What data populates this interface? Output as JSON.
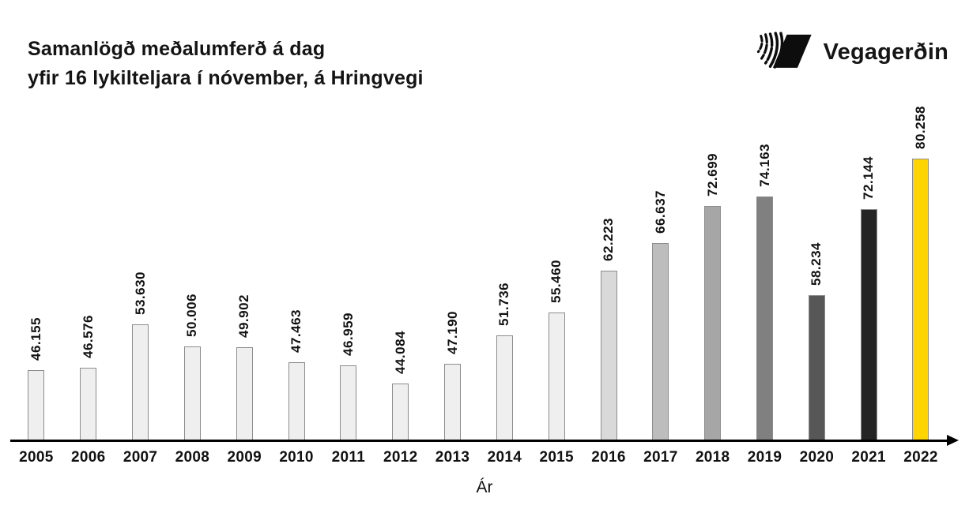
{
  "header": {
    "title_line1": "Samanlögð meðalumferð á dag",
    "title_line2": "yfir 16 lykilteljara í nóvember, á Hringvegi",
    "logo_text": "Vegagerðin"
  },
  "chart_data": {
    "type": "bar",
    "title": "Samanlögð meðalumferð á dag yfir 16 lykilteljara í nóvember, á Hringvegi",
    "xlabel": "Ár",
    "ylabel": "",
    "grid": false,
    "legend": "none",
    "ylim": [
      35000,
      80258
    ],
    "categories": [
      "2005",
      "2006",
      "2007",
      "2008",
      "2009",
      "2010",
      "2011",
      "2012",
      "2013",
      "2014",
      "2015",
      "2016",
      "2017",
      "2018",
      "2019",
      "2020",
      "2021",
      "2022"
    ],
    "values": [
      46155,
      46576,
      53630,
      50006,
      49902,
      47463,
      46959,
      44084,
      47190,
      51736,
      55460,
      62223,
      66637,
      72699,
      74163,
      58234,
      72144,
      80258
    ],
    "value_labels": [
      "46.155",
      "46.576",
      "53.630",
      "50.006",
      "49.902",
      "47.463",
      "46.959",
      "44.084",
      "47.190",
      "51.736",
      "55.460",
      "62.223",
      "66.637",
      "72.699",
      "74.163",
      "58.234",
      "72.144",
      "80.258"
    ],
    "bar_colors": [
      "#EFEFEF",
      "#EFEFEF",
      "#EFEFEF",
      "#EFEFEF",
      "#EFEFEF",
      "#EFEFEF",
      "#EFEFEF",
      "#EFEFEF",
      "#EFEFEF",
      "#EFEFEF",
      "#EFEFEF",
      "#D9D9D9",
      "#BDBDBD",
      "#A6A6A6",
      "#808080",
      "#575757",
      "#242424",
      "#FFD500"
    ],
    "bar_border_color": "#8C8C8C",
    "axis_color": "#000000",
    "highlight_year": "2022",
    "highlight_color": "#FFD500"
  }
}
